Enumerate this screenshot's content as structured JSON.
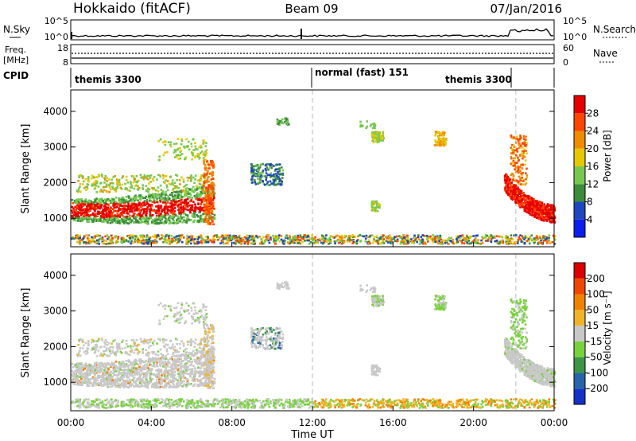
{
  "header": {
    "site": "Hokkaido (fitACF)",
    "beam": "Beam 09",
    "date": "07/Jan/2016"
  },
  "strip": {
    "nsky_label": "N.Sky",
    "nsky_ticks": [
      "10^5",
      "10^0"
    ],
    "nsearch_label": "N.Search",
    "nsearch_ticks": [
      "10^5",
      "10^0"
    ],
    "freq_label": "Freq.",
    "freq_unit": "[MHz]",
    "freq_ticks": [
      "18",
      "8"
    ],
    "nave_label": "Nave",
    "nave_ticks": [
      "60",
      "0"
    ],
    "cpid_label": "CPID",
    "modes": [
      "themis 3300",
      "normal (fast) 151",
      "themis 3300"
    ]
  },
  "chart_data": [
    {
      "type": "heatmap",
      "name": "power",
      "ylabel": "Slant Range [km]",
      "yticks": [
        "1000",
        "2000",
        "3000",
        "4000"
      ],
      "ylim": [
        200,
        4600
      ],
      "xlim": [
        0,
        24
      ],
      "colorbar_label": "Power [dB]",
      "colorbar_ticks": [
        "4",
        "8",
        "12",
        "16",
        "20",
        "24",
        "28"
      ],
      "colors": [
        "#0a1ef0",
        "#1e46be",
        "#3c8c3c",
        "#78c850",
        "#e6c800",
        "#f08c00",
        "#ff4600",
        "#e60000"
      ]
    },
    {
      "type": "heatmap",
      "name": "velocity",
      "ylabel": "Slant Range [km]",
      "yticks": [
        "1000",
        "2000",
        "3000",
        "4000"
      ],
      "ylim": [
        200,
        4600
      ],
      "xlim": [
        0,
        24
      ],
      "xlabel": "Time UT",
      "xticks": [
        "00:00",
        "04:00",
        "08:00",
        "12:00",
        "16:00",
        "20:00",
        "00:00"
      ],
      "colorbar_label": "Velocity [m s⁻¹]",
      "colorbar_ticks": [
        "200",
        "100",
        "50",
        "15",
        "-15",
        "-50",
        "-100",
        "-200"
      ],
      "colors": [
        "#1432c8",
        "#2864aa",
        "#3c9646",
        "#78d23c",
        "#c8c8c8",
        "#f0b428",
        "#f08200",
        "#f04600",
        "#dc0000"
      ]
    }
  ]
}
